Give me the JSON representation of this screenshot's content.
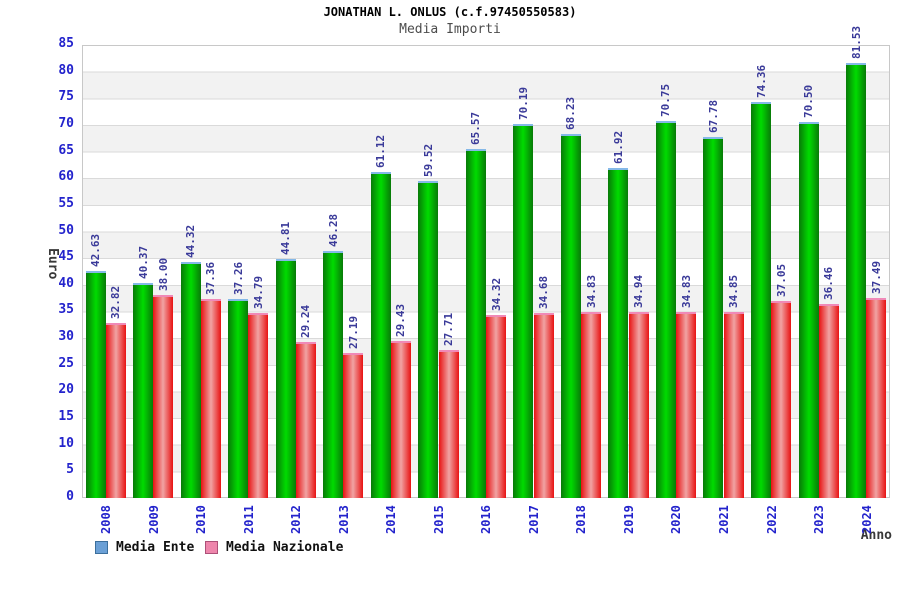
{
  "chart_data": {
    "type": "bar",
    "title": "JONATHAN L. ONLUS (c.f.97450550583)",
    "subtitle": "Media Importi",
    "xlabel": "Anno",
    "ylabel": "Euro",
    "ylim": [
      0,
      85
    ],
    "ytick_step": 5,
    "grid": "horizontal-bands-alternating",
    "legend_position": "bottom-left",
    "categories": [
      "2008",
      "2009",
      "2010",
      "2011",
      "2012",
      "2013",
      "2014",
      "2015",
      "2016",
      "2017",
      "2018",
      "2019",
      "2020",
      "2021",
      "2022",
      "2023",
      "2024"
    ],
    "series": [
      {
        "name": "Media Ente",
        "values": [
          42.63,
          40.37,
          44.32,
          37.26,
          44.81,
          46.28,
          61.12,
          59.52,
          65.57,
          70.19,
          68.23,
          61.92,
          70.75,
          67.78,
          74.36,
          70.5,
          81.53
        ],
        "bar_edge_color": "#087a08",
        "bar_center_color": "#00dc00",
        "bar_cap_color": "#85b9e8",
        "legend_swatch_color": "#6ba0d6",
        "legend_swatch_border": "#3c6f9c"
      },
      {
        "name": "Media Nazionale",
        "values": [
          32.82,
          38.0,
          37.36,
          34.79,
          29.24,
          27.19,
          29.43,
          27.71,
          34.32,
          34.68,
          34.83,
          34.94,
          34.83,
          34.85,
          37.05,
          36.46,
          37.49
        ],
        "bar_edge_color": "#e81212",
        "bar_center_color": "#f0a3a3",
        "bar_cap_color": "#f089b7",
        "legend_swatch_color": "#ee86ac",
        "legend_swatch_border": "#ad5078"
      }
    ],
    "value_label_color": "#3a3a99",
    "tick_label_color": "#2323cc",
    "value_label_decimals": 2
  }
}
